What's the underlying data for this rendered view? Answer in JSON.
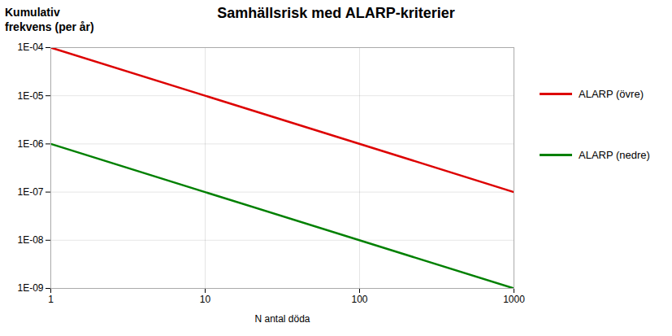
{
  "chart_data": {
    "type": "line",
    "title": "Samhällsrisk med ALARP-kriterier",
    "xlabel": "N antal döda",
    "ylabel": "Kumulativ\nfrekvens (per år)",
    "x": [
      1,
      1000
    ],
    "series": [
      {
        "name": "ALARP (övre)",
        "color": "#dd0000",
        "values": [
          0.0001,
          1e-07
        ]
      },
      {
        "name": "ALARP (nedre)",
        "color": "#008000",
        "values": [
          1e-06,
          1e-09
        ]
      }
    ],
    "log": true,
    "xlim": [
      1,
      1000
    ],
    "ylim": [
      1e-09,
      0.0001
    ],
    "xticks": [
      1,
      10,
      100,
      1000
    ],
    "yticks": [
      {
        "value": 1e-09,
        "label": "1E-09"
      },
      {
        "value": 1e-08,
        "label": "1E-08"
      },
      {
        "value": 1e-07,
        "label": "1E-07"
      },
      {
        "value": 1e-06,
        "label": "1E-06"
      },
      {
        "value": 1e-05,
        "label": "1E-05"
      },
      {
        "value": 0.0001,
        "label": "1E-04"
      }
    ],
    "grid": true,
    "legend": "right"
  }
}
